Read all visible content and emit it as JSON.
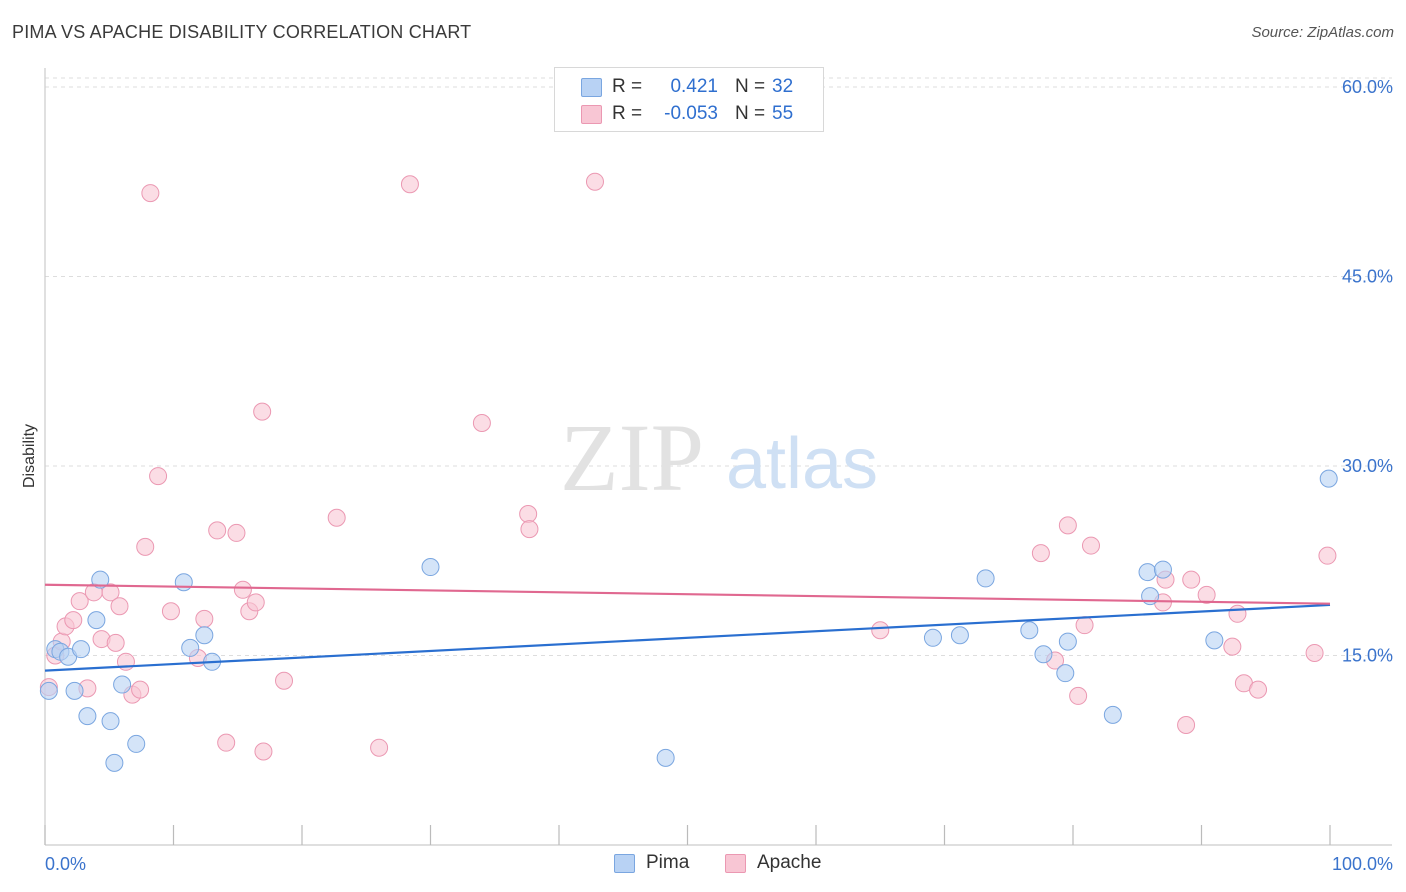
{
  "header": {
    "title": "PIMA VS APACHE DISABILITY CORRELATION CHART",
    "source": "Source: ZipAtlas.com"
  },
  "watermark": {
    "zip": "ZIP",
    "atlas": "atlas"
  },
  "legend": {
    "rows": [
      {
        "series": "Pima",
        "r_label": "R =",
        "r_value": "0.421",
        "n_label": "N =",
        "n_value": "32"
      },
      {
        "series": "Apache",
        "r_label": "R =",
        "r_value": "-0.053",
        "n_label": "N =",
        "n_value": "55"
      }
    ]
  },
  "bottom_legend": {
    "pima": "Pima",
    "apache": "Apache"
  },
  "colors": {
    "pima_fill": "#b8d2f4",
    "pima_stroke": "#7aa6e0",
    "pima_line": "#2a6fd0",
    "apache_fill": "#f8c6d4",
    "apache_stroke": "#eb98b2",
    "apache_line": "#e06890",
    "tick_label": "#3a73cc",
    "grid": "#dddddd"
  },
  "chart_data": {
    "type": "scatter",
    "title": "PIMA VS APACHE DISABILITY CORRELATION CHART",
    "xlabel": "",
    "ylabel": "Disability",
    "xlim": [
      0,
      100
    ],
    "ylim": [
      0,
      61.5
    ],
    "x_tick_labels": [
      "0.0%",
      "100.0%"
    ],
    "y_ticks": [
      15,
      30,
      45,
      60
    ],
    "y_tick_labels": [
      "15.0%",
      "30.0%",
      "45.0%",
      "60.0%"
    ],
    "grid": true,
    "legend_position": "top-center",
    "series": [
      {
        "name": "Pima",
        "r": 0.421,
        "n": 32,
        "trend": {
          "x": [
            0,
            100
          ],
          "y": [
            13.8,
            19.0
          ]
        },
        "points": [
          [
            0.3,
            12.2
          ],
          [
            0.8,
            15.5
          ],
          [
            1.2,
            15.3
          ],
          [
            1.8,
            14.9
          ],
          [
            2.3,
            12.2
          ],
          [
            2.8,
            15.5
          ],
          [
            3.3,
            10.2
          ],
          [
            4.0,
            17.8
          ],
          [
            4.3,
            21.0
          ],
          [
            5.1,
            9.8
          ],
          [
            5.4,
            6.5
          ],
          [
            6.0,
            12.7
          ],
          [
            7.1,
            8.0
          ],
          [
            10.8,
            20.8
          ],
          [
            11.3,
            15.6
          ],
          [
            12.4,
            16.6
          ],
          [
            13.0,
            14.5
          ],
          [
            30.0,
            22.0
          ],
          [
            48.3,
            6.9
          ],
          [
            69.1,
            16.4
          ],
          [
            71.2,
            16.6
          ],
          [
            73.2,
            21.1
          ],
          [
            76.6,
            17.0
          ],
          [
            77.7,
            15.1
          ],
          [
            79.4,
            13.6
          ],
          [
            79.6,
            16.1
          ],
          [
            83.1,
            10.3
          ],
          [
            85.8,
            21.6
          ],
          [
            86.0,
            19.7
          ],
          [
            87.0,
            21.8
          ],
          [
            91.0,
            16.2
          ],
          [
            99.9,
            29.0
          ]
        ]
      },
      {
        "name": "Apache",
        "r": -0.053,
        "n": 55,
        "trend": {
          "x": [
            0,
            100
          ],
          "y": [
            20.6,
            19.1
          ]
        },
        "points": [
          [
            0.3,
            12.5
          ],
          [
            0.8,
            15.0
          ],
          [
            1.3,
            16.1
          ],
          [
            1.6,
            17.3
          ],
          [
            2.2,
            17.8
          ],
          [
            2.7,
            19.3
          ],
          [
            3.3,
            12.4
          ],
          [
            3.8,
            20.0
          ],
          [
            4.4,
            16.3
          ],
          [
            5.1,
            20.0
          ],
          [
            5.5,
            16.0
          ],
          [
            5.8,
            18.9
          ],
          [
            6.3,
            14.5
          ],
          [
            6.8,
            11.9
          ],
          [
            7.4,
            12.3
          ],
          [
            7.8,
            23.6
          ],
          [
            8.2,
            51.6
          ],
          [
            8.8,
            29.2
          ],
          [
            9.8,
            18.5
          ],
          [
            11.9,
            14.8
          ],
          [
            12.4,
            17.9
          ],
          [
            13.4,
            24.9
          ],
          [
            14.1,
            8.1
          ],
          [
            14.9,
            24.7
          ],
          [
            15.4,
            20.2
          ],
          [
            15.9,
            18.5
          ],
          [
            16.4,
            19.2
          ],
          [
            17.0,
            7.4
          ],
          [
            16.9,
            34.3
          ],
          [
            18.6,
            13.0
          ],
          [
            22.7,
            25.9
          ],
          [
            26.0,
            7.7
          ],
          [
            28.4,
            52.3
          ],
          [
            34.0,
            33.4
          ],
          [
            37.6,
            26.2
          ],
          [
            37.7,
            25.0
          ],
          [
            42.8,
            52.5
          ],
          [
            65.0,
            17.0
          ],
          [
            77.5,
            23.1
          ],
          [
            78.6,
            14.6
          ],
          [
            79.6,
            25.3
          ],
          [
            80.9,
            17.4
          ],
          [
            80.4,
            11.8
          ],
          [
            81.4,
            23.7
          ],
          [
            87.0,
            19.2
          ],
          [
            87.2,
            21.0
          ],
          [
            89.2,
            21.0
          ],
          [
            88.8,
            9.5
          ],
          [
            90.4,
            19.8
          ],
          [
            92.4,
            15.7
          ],
          [
            92.8,
            18.3
          ],
          [
            93.3,
            12.8
          ],
          [
            94.4,
            12.3
          ],
          [
            98.8,
            15.2
          ],
          [
            99.8,
            22.9
          ]
        ]
      }
    ]
  }
}
